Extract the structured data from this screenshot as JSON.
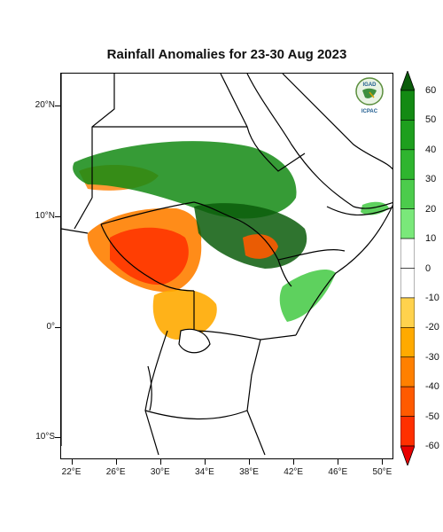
{
  "title": "Rainfall Anomalies for 23-30 Aug 2023",
  "logo": {
    "top_text": "IGAD",
    "bottom_text": "ICPAC"
  },
  "map": {
    "lon_range": [
      21,
      51
    ],
    "lat_range": [
      -12,
      23
    ],
    "lat_ticks": [
      {
        "value": 20,
        "label": "20°N"
      },
      {
        "value": 10,
        "label": "10°N"
      },
      {
        "value": 0,
        "label": "0°"
      },
      {
        "value": -10,
        "label": "10°S"
      }
    ],
    "lon_ticks": [
      {
        "value": 22,
        "label": "22°E"
      },
      {
        "value": 26,
        "label": "26°E"
      },
      {
        "value": 30,
        "label": "30°E"
      },
      {
        "value": 34,
        "label": "34°E"
      },
      {
        "value": 38,
        "label": "38°E"
      },
      {
        "value": 42,
        "label": "42°E"
      },
      {
        "value": 46,
        "label": "46°E"
      },
      {
        "value": 50,
        "label": "50°E"
      }
    ]
  },
  "colorbar": {
    "labels": [
      "60",
      "50",
      "40",
      "30",
      "20",
      "10",
      "0",
      "-10",
      "-20",
      "-30",
      "-40",
      "-50",
      "-60"
    ],
    "colors": [
      "#0a5c0a",
      "#138a13",
      "#1e9f1e",
      "#2fb52f",
      "#4ccc4c",
      "#7ae87a",
      "#ffffff",
      "#ffd24d",
      "#ffaa00",
      "#ff8000",
      "#ff5a00",
      "#ff3000",
      "#e80000"
    ],
    "top_color": "#0a5c0a",
    "bottom_color": "#e80000"
  }
}
